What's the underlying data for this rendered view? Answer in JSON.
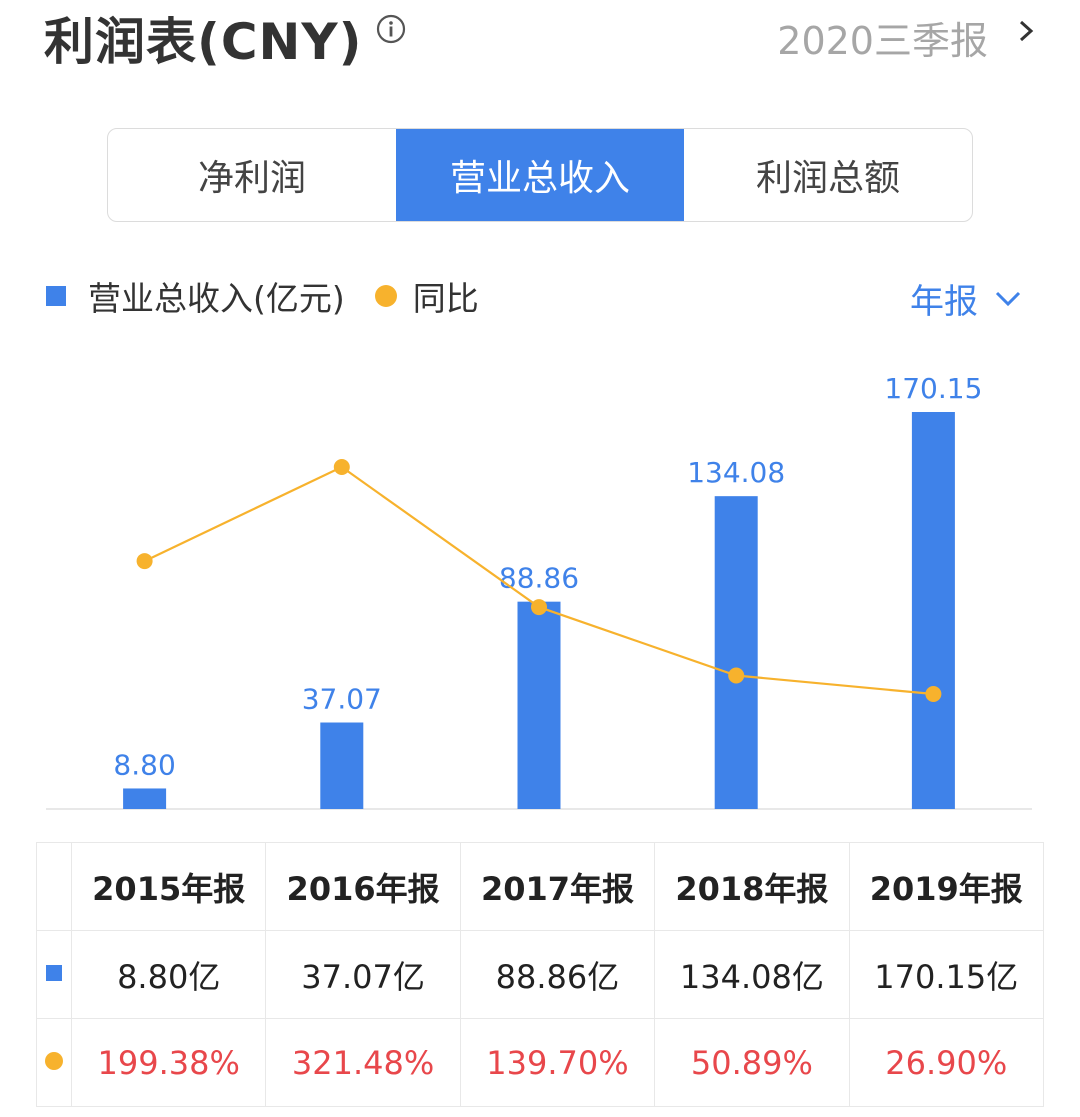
{
  "header": {
    "title": "利润表(CNY)",
    "period": "2020三季报"
  },
  "tabs": [
    {
      "label": "净利润",
      "active": false
    },
    {
      "label": "营业总收入",
      "active": true
    },
    {
      "label": "利润总额",
      "active": false
    }
  ],
  "legend": {
    "bar_label": "营业总收入(亿元)",
    "line_label": "同比",
    "report_type": "年报"
  },
  "colors": {
    "accent": "#3f82e9",
    "bar": "#3f82e9",
    "line": "#f7b22d",
    "negative_text": "#e8474b"
  },
  "chart_data": {
    "type": "bar",
    "categories": [
      "2015年报",
      "2016年报",
      "2017年报",
      "2018年报",
      "2019年报"
    ],
    "series": [
      {
        "name": "营业总收入(亿元)",
        "type": "bar",
        "values": [
          8.8,
          37.07,
          88.86,
          134.08,
          170.15
        ],
        "labels": [
          "8.80",
          "37.07",
          "88.86",
          "134.08",
          "170.15"
        ]
      },
      {
        "name": "同比",
        "type": "line",
        "values": [
          199.38,
          321.48,
          139.7,
          50.89,
          26.9
        ]
      }
    ],
    "legend": "top-left"
  },
  "table": {
    "years": [
      "2015年报",
      "2016年报",
      "2017年报",
      "2018年报",
      "2019年报"
    ],
    "revenue": [
      "8.80亿",
      "37.07亿",
      "88.86亿",
      "134.08亿",
      "170.15亿"
    ],
    "yoy": [
      "199.38%",
      "321.48%",
      "139.70%",
      "50.89%",
      "26.90%"
    ]
  }
}
